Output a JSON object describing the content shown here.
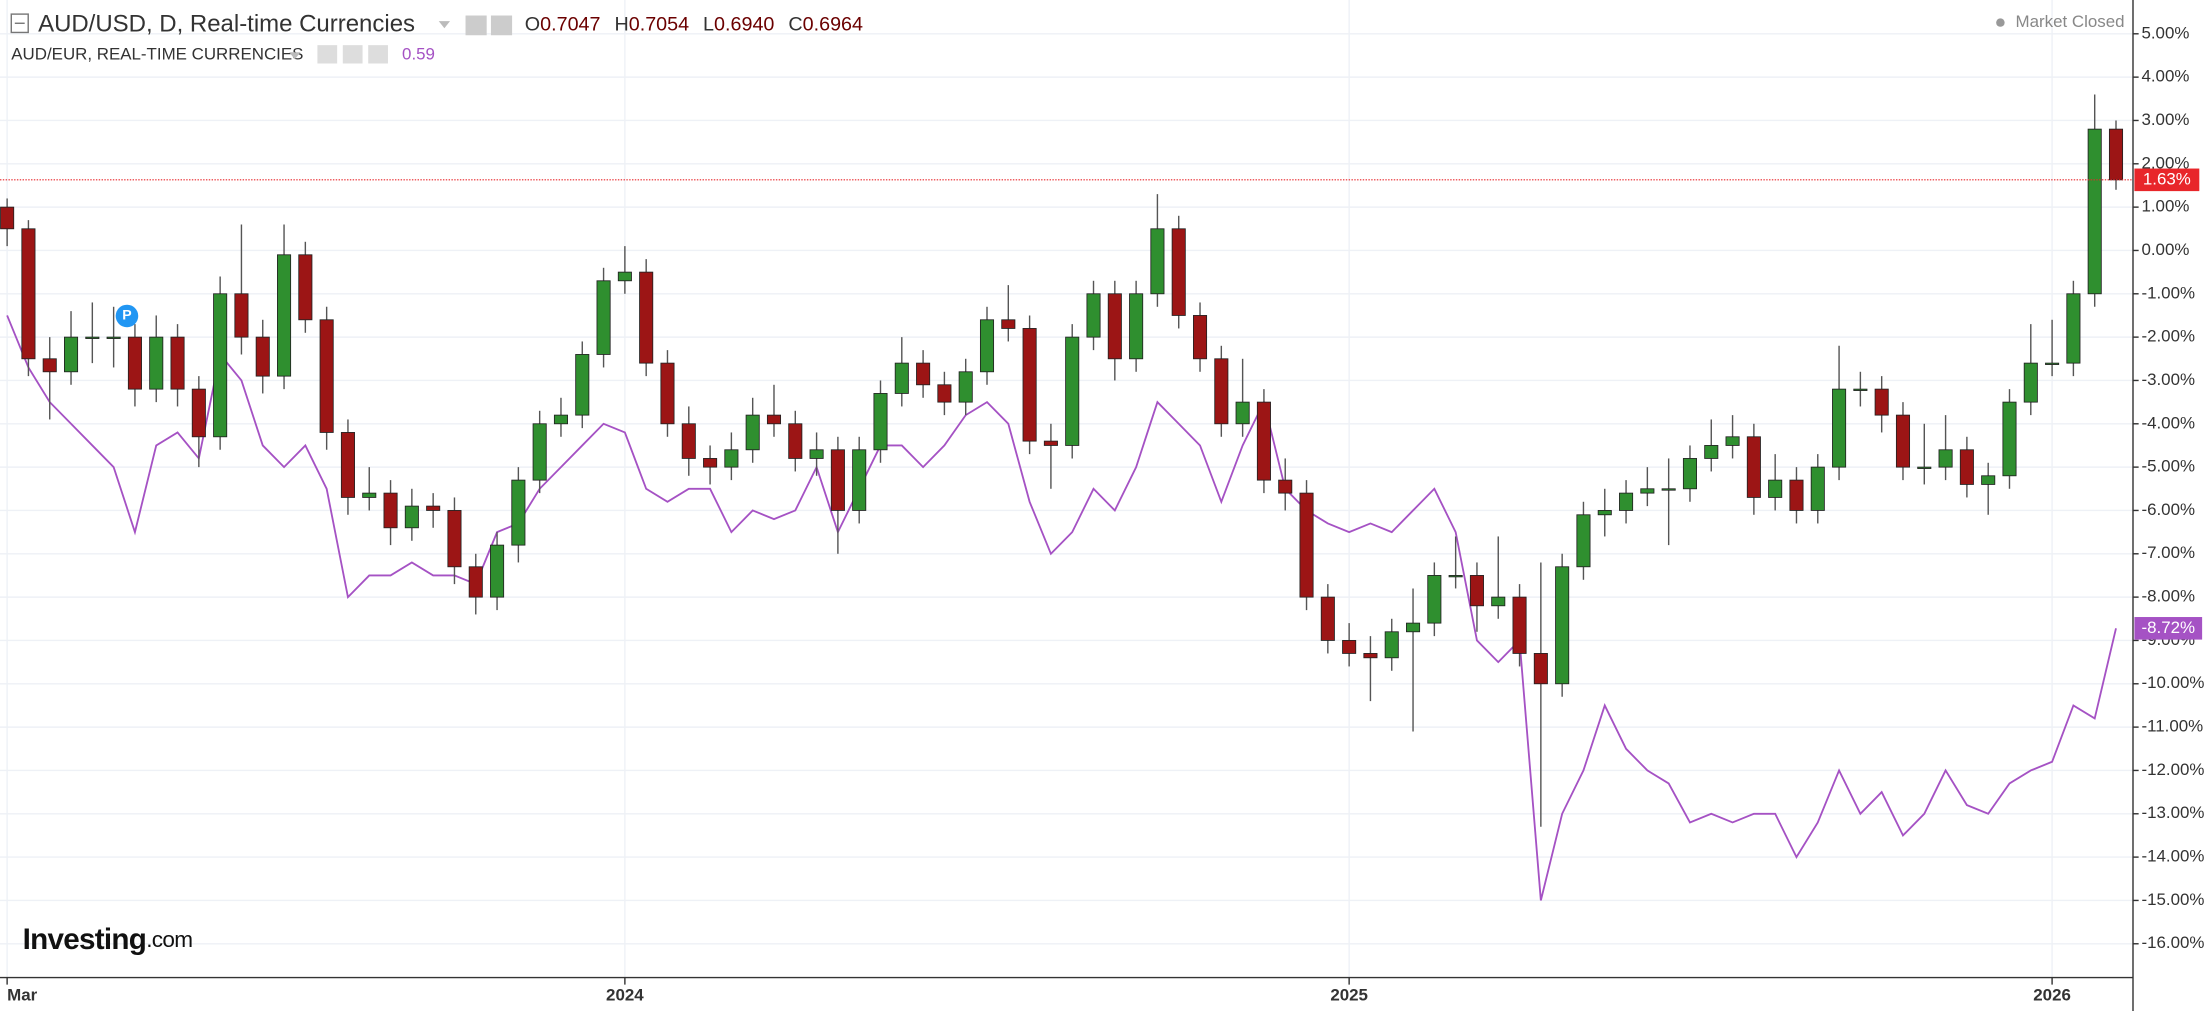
{
  "header": {
    "quote": [
      {
        "key": "O",
        "value": "0.7047"
      },
      {
        "key": "H",
        "value": "0.7054"
      },
      {
        "key": "L",
        "value": "0.6940"
      },
      {
        "key": "C",
        "value": "0.6964"
      }
    ],
    "indicator_value": "0.59",
    "status": "Market Closed",
    "event_marker": "P",
    "brand": "Investing",
    "brand_suffix": ".com"
  },
  "chart_data": {
    "type": "candlestick",
    "categories": [
      "Mar",
      null,
      null,
      null,
      null,
      null,
      null,
      null,
      null,
      null,
      null,
      null,
      null,
      null,
      null,
      null,
      null,
      null,
      null,
      null,
      null,
      null,
      null,
      null,
      null,
      null,
      null,
      null,
      null,
      "2024",
      null,
      null,
      null,
      null,
      null,
      null,
      null,
      null,
      null,
      null,
      null,
      null,
      null,
      null,
      null,
      null,
      null,
      null,
      null,
      null,
      null,
      null,
      null,
      null,
      null,
      null,
      null,
      null,
      null,
      null,
      null,
      null,
      null,
      "2025",
      null,
      null,
      null,
      null,
      null,
      null,
      null,
      null,
      null,
      null,
      null,
      null,
      null,
      null,
      null,
      null,
      null,
      null,
      null,
      null,
      null,
      null,
      null,
      null,
      null,
      null,
      null,
      null,
      null,
      null,
      null,
      null,
      "2026",
      null,
      null,
      null
    ],
    "ylim": [
      -16.78,
      5.78
    ],
    "yticks": [
      {
        "value": 5,
        "label": "5.00%"
      },
      {
        "value": 4,
        "label": "4.00%"
      },
      {
        "value": 3,
        "label": "3.00%"
      },
      {
        "value": 2,
        "label": "2.00%"
      },
      {
        "value": 1,
        "label": "1.00%"
      },
      {
        "value": 0,
        "label": "0.00%"
      },
      {
        "value": -1,
        "label": "-1.00%"
      },
      {
        "value": -2,
        "label": "-2.00%"
      },
      {
        "value": -3,
        "label": "-3.00%"
      },
      {
        "value": -4,
        "label": "-4.00%"
      },
      {
        "value": -5,
        "label": "-5.00%"
      },
      {
        "value": -6,
        "label": "-6.00%"
      },
      {
        "value": -7,
        "label": "-7.00%"
      },
      {
        "value": -8,
        "label": "-8.00%"
      },
      {
        "value": -9,
        "label": "-9.00%"
      },
      {
        "value": -10,
        "label": "-10.00%"
      },
      {
        "value": -11,
        "label": "-11.00%"
      },
      {
        "value": -12,
        "label": "-12.00%"
      },
      {
        "value": -13,
        "label": "-13.00%"
      },
      {
        "value": -14,
        "label": "-14.00%"
      },
      {
        "value": -15,
        "label": "-15.00%"
      },
      {
        "value": -16,
        "label": "-16.00%"
      }
    ],
    "grid": true,
    "series": [
      {
        "name": "AUD/USD, D, Real-time Currencies",
        "color_up": "#2f8f2f",
        "color_down": "#9c1515",
        "color": "#e8262a",
        "open": [
          1.0,
          0.5,
          -2.5,
          -2.8,
          -2.0,
          -2.0,
          -2.0,
          -3.2,
          -2.0,
          -3.2,
          -4.3,
          -1.0,
          -2.0,
          -2.9,
          -0.1,
          -1.6,
          -4.2,
          -5.7,
          -5.6,
          -6.4,
          -5.9,
          -6.0,
          -7.3,
          -8.0,
          -6.8,
          -5.3,
          -4.0,
          -3.8,
          -2.4,
          -0.7,
          -0.5,
          -2.6,
          -4.0,
          -4.8,
          -5.0,
          -4.6,
          -3.8,
          -4.0,
          -4.8,
          -4.6,
          -6.0,
          -4.6,
          -3.3,
          -2.6,
          -3.1,
          -3.5,
          -2.8,
          -1.6,
          -1.8,
          -4.4,
          -4.5,
          -2.0,
          -1.0,
          -2.5,
          -1.0,
          0.5,
          -1.5,
          -2.5,
          -4.0,
          -3.5,
          -5.3,
          -5.6,
          -8.0,
          -9.0,
          -9.3,
          -9.4,
          -8.8,
          -8.6,
          -7.5,
          -7.5,
          -8.2,
          -8.0,
          -9.3,
          -10.0,
          -7.3,
          -6.1,
          -6.0,
          -5.6,
          -5.5,
          -5.5,
          -4.8,
          -4.5,
          -4.3,
          -5.7,
          -5.3,
          -6.0,
          -5.0,
          -3.2,
          -3.2,
          -3.8,
          -5.0,
          -5.0,
          -4.6,
          -5.4,
          -5.2,
          -3.5,
          -2.6,
          -2.6,
          -1.0,
          2.8
        ],
        "high": [
          1.2,
          0.7,
          -2.0,
          -1.4,
          -1.2,
          -1.3,
          -1.7,
          -1.5,
          -1.7,
          -2.9,
          -0.6,
          0.6,
          -1.6,
          0.6,
          0.2,
          -1.3,
          -3.9,
          -5.0,
          -5.3,
          -5.5,
          -5.6,
          -5.7,
          -7.0,
          -6.5,
          -5.0,
          -3.7,
          -3.4,
          -2.1,
          -0.4,
          0.1,
          -0.2,
          -2.3,
          -3.6,
          -4.5,
          -4.2,
          -3.4,
          -3.1,
          -3.7,
          -4.2,
          -4.3,
          -4.3,
          -3.0,
          -2.0,
          -2.3,
          -2.8,
          -2.5,
          -1.3,
          -0.8,
          -1.5,
          -4.0,
          -1.7,
          -0.7,
          -0.7,
          -0.7,
          1.3,
          0.8,
          -1.2,
          -2.2,
          -2.5,
          -3.2,
          -4.8,
          -5.3,
          -7.7,
          -8.6,
          -8.9,
          -8.5,
          -7.8,
          -7.2,
          -6.6,
          -7.2,
          -6.6,
          -7.7,
          -7.2,
          -7.0,
          -5.8,
          -5.5,
          -5.3,
          -5.0,
          -4.8,
          -4.5,
          -3.9,
          -3.8,
          -4.0,
          -4.7,
          -5.0,
          -4.7,
          -2.2,
          -2.8,
          -2.9,
          -3.5,
          -4.0,
          -3.8,
          -4.3,
          -4.9,
          -3.2,
          -1.7,
          -1.6,
          -0.7,
          3.6,
          3.0
        ],
        "low": [
          0.1,
          -2.9,
          -3.9,
          -3.1,
          -2.6,
          -2.7,
          -3.6,
          -3.5,
          -3.6,
          -5.0,
          -4.6,
          -2.4,
          -3.3,
          -3.2,
          -1.9,
          -4.6,
          -6.1,
          -6.0,
          -6.8,
          -6.7,
          -6.4,
          -7.7,
          -8.4,
          -8.3,
          -7.2,
          -5.6,
          -4.3,
          -4.1,
          -2.7,
          -1.0,
          -2.9,
          -4.3,
          -5.2,
          -5.4,
          -5.3,
          -4.9,
          -4.3,
          -5.1,
          -5.2,
          -7.0,
          -6.3,
          -4.9,
          -3.6,
          -3.4,
          -3.8,
          -3.8,
          -3.1,
          -2.1,
          -4.7,
          -5.5,
          -4.8,
          -2.3,
          -3.0,
          -2.8,
          -1.3,
          -1.8,
          -2.8,
          -4.3,
          -4.3,
          -5.6,
          -6.0,
          -8.3,
          -9.3,
          -9.6,
          -10.4,
          -9.7,
          -11.1,
          -8.9,
          -7.8,
          -8.8,
          -8.5,
          -9.6,
          -13.3,
          -10.3,
          -7.6,
          -6.6,
          -6.3,
          -5.9,
          -6.8,
          -5.8,
          -5.1,
          -4.8,
          -6.1,
          -6.0,
          -6.3,
          -6.3,
          -5.3,
          -3.6,
          -4.2,
          -5.3,
          -5.4,
          -5.3,
          -5.7,
          -6.1,
          -5.5,
          -3.8,
          -2.9,
          -2.9,
          -1.3,
          1.4
        ],
        "close": [
          0.5,
          -2.5,
          -2.8,
          -2.0,
          -2.0,
          -2.0,
          -3.2,
          -2.0,
          -3.2,
          -4.3,
          -1.0,
          -2.0,
          -2.9,
          -0.1,
          -1.6,
          -4.2,
          -5.7,
          -5.6,
          -6.4,
          -5.9,
          -6.0,
          -7.3,
          -8.0,
          -6.8,
          -5.3,
          -4.0,
          -3.8,
          -2.4,
          -0.7,
          -0.5,
          -2.6,
          -4.0,
          -4.8,
          -5.0,
          -4.6,
          -3.8,
          -4.0,
          -4.8,
          -4.6,
          -6.0,
          -4.6,
          -3.3,
          -2.6,
          -3.1,
          -3.5,
          -2.8,
          -1.6,
          -1.8,
          -4.4,
          -4.5,
          -2.0,
          -1.0,
          -2.5,
          -1.0,
          0.5,
          -1.5,
          -2.5,
          -4.0,
          -3.5,
          -5.3,
          -5.6,
          -8.0,
          -9.0,
          -9.3,
          -9.4,
          -8.8,
          -8.6,
          -7.5,
          -7.5,
          -8.2,
          -8.0,
          -9.3,
          -10.0,
          -7.3,
          -6.1,
          -6.0,
          -5.6,
          -5.5,
          -5.5,
          -4.8,
          -4.5,
          -4.3,
          -5.7,
          -5.3,
          -6.0,
          -5.0,
          -3.2,
          -3.2,
          -3.8,
          -5.0,
          -5.0,
          -4.6,
          -5.4,
          -5.2,
          -3.5,
          -2.6,
          -2.6,
          -1.0,
          2.8,
          1.63
        ],
        "value_labels": [
          null,
          null,
          null,
          null,
          null,
          null,
          null,
          null,
          null,
          null,
          null,
          null,
          null,
          null,
          null,
          null,
          null,
          null,
          null,
          null,
          null,
          null,
          null,
          null,
          null,
          null,
          null,
          null,
          null,
          null,
          null,
          null,
          null,
          null,
          null,
          null,
          null,
          null,
          null,
          null,
          null,
          null,
          null,
          null,
          null,
          null,
          null,
          null,
          null,
          null,
          null,
          null,
          null,
          null,
          null,
          null,
          null,
          null,
          null,
          null,
          null,
          null,
          null,
          null,
          null,
          null,
          null,
          null,
          null,
          null,
          null,
          null,
          null,
          null,
          null,
          null,
          null,
          null,
          null,
          null,
          null,
          null,
          null,
          null,
          null,
          null,
          null,
          null,
          null,
          null,
          null,
          null,
          null,
          null,
          null,
          null,
          null,
          null,
          null,
          "1.63%"
        ]
      },
      {
        "name": "AUD/EUR, REAL-TIME CURRENCIES",
        "type": "line",
        "color": "#a552c4",
        "values": [
          -1.5,
          -2.7,
          -3.5,
          -4.0,
          -4.5,
          -5.0,
          -6.5,
          -4.5,
          -4.2,
          -4.8,
          -2.4,
          -3.0,
          -4.5,
          -5.0,
          -4.5,
          -5.5,
          -8.0,
          -7.5,
          -7.5,
          -7.2,
          -7.5,
          -7.5,
          -7.7,
          -6.5,
          -6.3,
          -5.5,
          -5.0,
          -4.5,
          -4.0,
          -4.2,
          -5.5,
          -5.8,
          -5.5,
          -5.5,
          -6.5,
          -6.0,
          -6.2,
          -6.0,
          -5.0,
          -6.5,
          -5.5,
          -4.5,
          -4.5,
          -5.0,
          -4.5,
          -3.8,
          -3.5,
          -4.0,
          -5.8,
          -7.0,
          -6.5,
          -5.5,
          -6.0,
          -5.0,
          -3.5,
          -4.0,
          -4.5,
          -5.8,
          -4.5,
          -3.5,
          -5.5,
          -6.0,
          -6.3,
          -6.5,
          -6.3,
          -6.5,
          -6.0,
          -5.5,
          -6.5,
          -9.0,
          -9.5,
          -9.0,
          -15.0,
          -13.0,
          -12.0,
          -10.5,
          -11.5,
          -12.0,
          -12.3,
          -13.2,
          -13.0,
          -13.2,
          -13.0,
          -13.0,
          -14.0,
          -13.2,
          -12.0,
          -13.0,
          -12.5,
          -13.5,
          -13.0,
          -12.0,
          -12.8,
          -13.0,
          -12.3,
          -12.0,
          -11.8,
          -10.5,
          -10.8,
          -8.72
        ],
        "value_labels": [
          null,
          null,
          null,
          null,
          null,
          null,
          null,
          null,
          null,
          null,
          null,
          null,
          null,
          null,
          null,
          null,
          null,
          null,
          null,
          null,
          null,
          null,
          null,
          null,
          null,
          null,
          null,
          null,
          null,
          null,
          null,
          null,
          null,
          null,
          null,
          null,
          null,
          null,
          null,
          null,
          null,
          null,
          null,
          null,
          null,
          null,
          null,
          null,
          null,
          null,
          null,
          null,
          null,
          null,
          null,
          null,
          null,
          null,
          null,
          null,
          null,
          null,
          null,
          null,
          null,
          null,
          null,
          null,
          null,
          null,
          null,
          null,
          null,
          null,
          null,
          null,
          null,
          null,
          null,
          null,
          null,
          null,
          null,
          null,
          null,
          null,
          null,
          null,
          null,
          null,
          null,
          null,
          null,
          null,
          null,
          null,
          null,
          null,
          null,
          "-8.72%"
        ]
      }
    ]
  }
}
